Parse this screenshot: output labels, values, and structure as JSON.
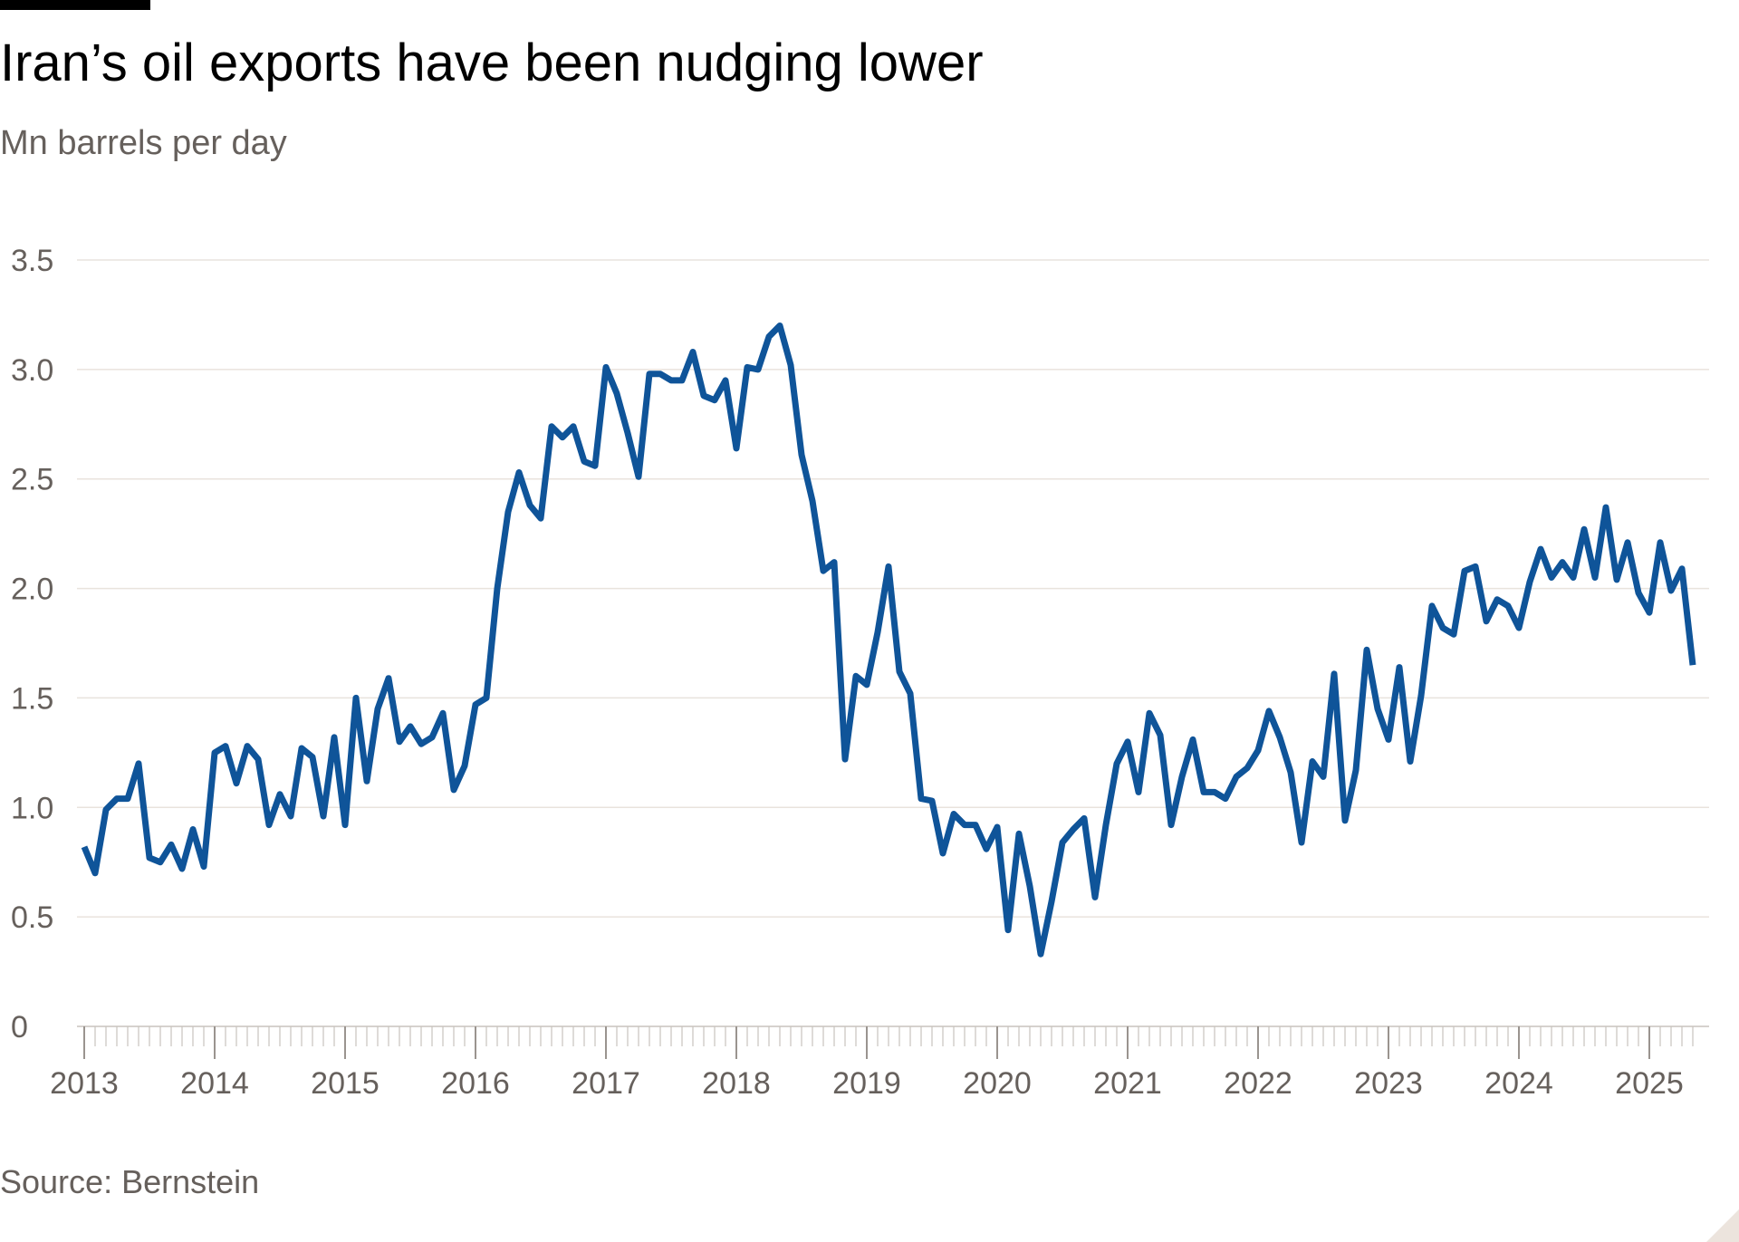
{
  "title": "Iran’s oil exports have been nudging lower",
  "subtitle": "Mn barrels per day",
  "source": "Source: Bernstein",
  "colors": {
    "line": "#0f5499",
    "grid": "#e9e3dd",
    "axis_text": "#66605c",
    "tick": "#c8c3be"
  },
  "chart_data": {
    "type": "line",
    "title": "Iran’s oil exports have been nudging lower",
    "ylabel": "Mn barrels per day",
    "xlabel": "",
    "x_start": "2013-01",
    "x_frequency": "monthly",
    "xlim": [
      "2013-01",
      "2025-05"
    ],
    "ylim": [
      0,
      3.5
    ],
    "yticks": [
      "0",
      "0.5",
      "1.0",
      "1.5",
      "2.0",
      "2.5",
      "3.0",
      "3.5"
    ],
    "xticks": [
      "2013",
      "2014",
      "2015",
      "2016",
      "2017",
      "2018",
      "2019",
      "2020",
      "2021",
      "2022",
      "2023",
      "2024",
      "2025"
    ],
    "grid": true,
    "series": [
      {
        "values": [
          0.82,
          0.7,
          0.99,
          1.04,
          1.04,
          1.2,
          0.77,
          0.75,
          0.83,
          0.72,
          0.9,
          0.73,
          1.25,
          1.28,
          1.11,
          1.28,
          1.22,
          0.92,
          1.06,
          0.96,
          1.27,
          1.23,
          0.96,
          1.32,
          0.92,
          1.5,
          1.12,
          1.45,
          1.59,
          1.3,
          1.37,
          1.29,
          1.32,
          1.43,
          1.08,
          1.19,
          1.47,
          1.5,
          2.0,
          2.35,
          2.53,
          2.38,
          2.32,
          2.74,
          2.69,
          2.74,
          2.58,
          2.56,
          3.01,
          2.89,
          2.71,
          2.51,
          2.98,
          2.98,
          2.95,
          2.95,
          3.08,
          2.88,
          2.86,
          2.95,
          2.64,
          3.01,
          3.0,
          3.15,
          3.2,
          3.02,
          2.61,
          2.4,
          2.08,
          2.12,
          1.22,
          1.6,
          1.56,
          1.8,
          2.1,
          1.62,
          1.52,
          1.04,
          1.03,
          0.79,
          0.97,
          0.92,
          0.92,
          0.81,
          0.91,
          0.44,
          0.88,
          0.64,
          0.33,
          0.57,
          0.84,
          0.9,
          0.95,
          0.59,
          0.92,
          1.2,
          1.3,
          1.07,
          1.43,
          1.33,
          0.92,
          1.14,
          1.31,
          1.07,
          1.07,
          1.04,
          1.14,
          1.18,
          1.26,
          1.44,
          1.32,
          1.16,
          0.84,
          1.21,
          1.14,
          1.61,
          0.94,
          1.17,
          1.72,
          1.45,
          1.31,
          1.64,
          1.21,
          1.51,
          1.92,
          1.82,
          1.79,
          2.08,
          2.1,
          1.85,
          1.95,
          1.92,
          1.82,
          2.03,
          2.18,
          2.05,
          2.12,
          2.05,
          2.27,
          2.05,
          2.37,
          2.04,
          2.21,
          1.98,
          1.89,
          2.21,
          1.99,
          2.09,
          1.65
        ]
      }
    ]
  }
}
